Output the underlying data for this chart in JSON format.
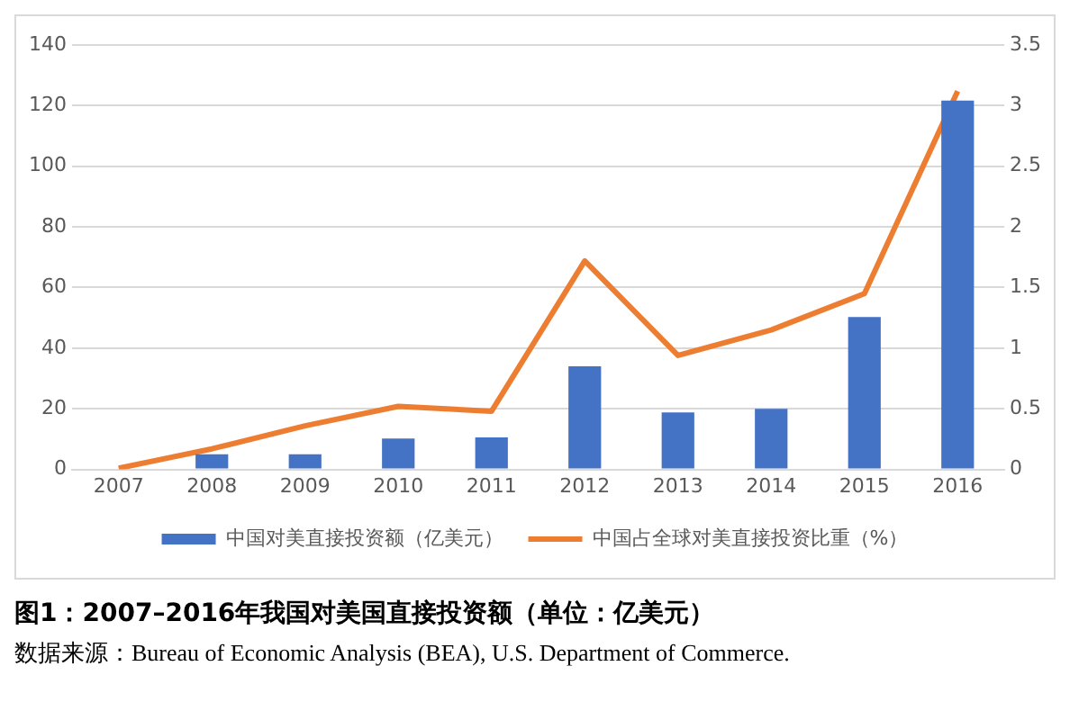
{
  "chart_data": {
    "type": "bar",
    "title": "图1：2007–2016年我国对美国直接投资额（单位：亿美元）",
    "annotations": [
      "数据来源：Bureau of Economic Analysis (BEA), U.S. Department of Commerce."
    ],
    "categories": [
      "2007",
      "2008",
      "2009",
      "2010",
      "2011",
      "2012",
      "2013",
      "2014",
      "2015",
      "2016"
    ],
    "series": [
      {
        "name": "中国对美直接投资额（亿美元）",
        "color": "#4472c4",
        "values": [
          0,
          5,
          5,
          10.2,
          10.6,
          34,
          18.8,
          20,
          50.3,
          121.7
        ]
      },
      {
        "name": "中国占全球对美直接投资比重（%）",
        "type": "line",
        "axis": "y2",
        "color": "#ed7d31",
        "marker": "none",
        "values": [
          0.01,
          0.17,
          0.36,
          0.52,
          0.48,
          1.72,
          0.94,
          1.15,
          1.45,
          3.12
        ]
      }
    ],
    "ylim": [
      0,
      140
    ],
    "yticks": [
      0,
      20,
      40,
      60,
      80,
      100,
      120,
      140
    ],
    "y2lim": [
      0,
      3.5
    ],
    "y2ticks": [
      0,
      0.5,
      1,
      1.5,
      2,
      2.5,
      3,
      3.5
    ],
    "grid": "y",
    "legend": "bottom"
  }
}
